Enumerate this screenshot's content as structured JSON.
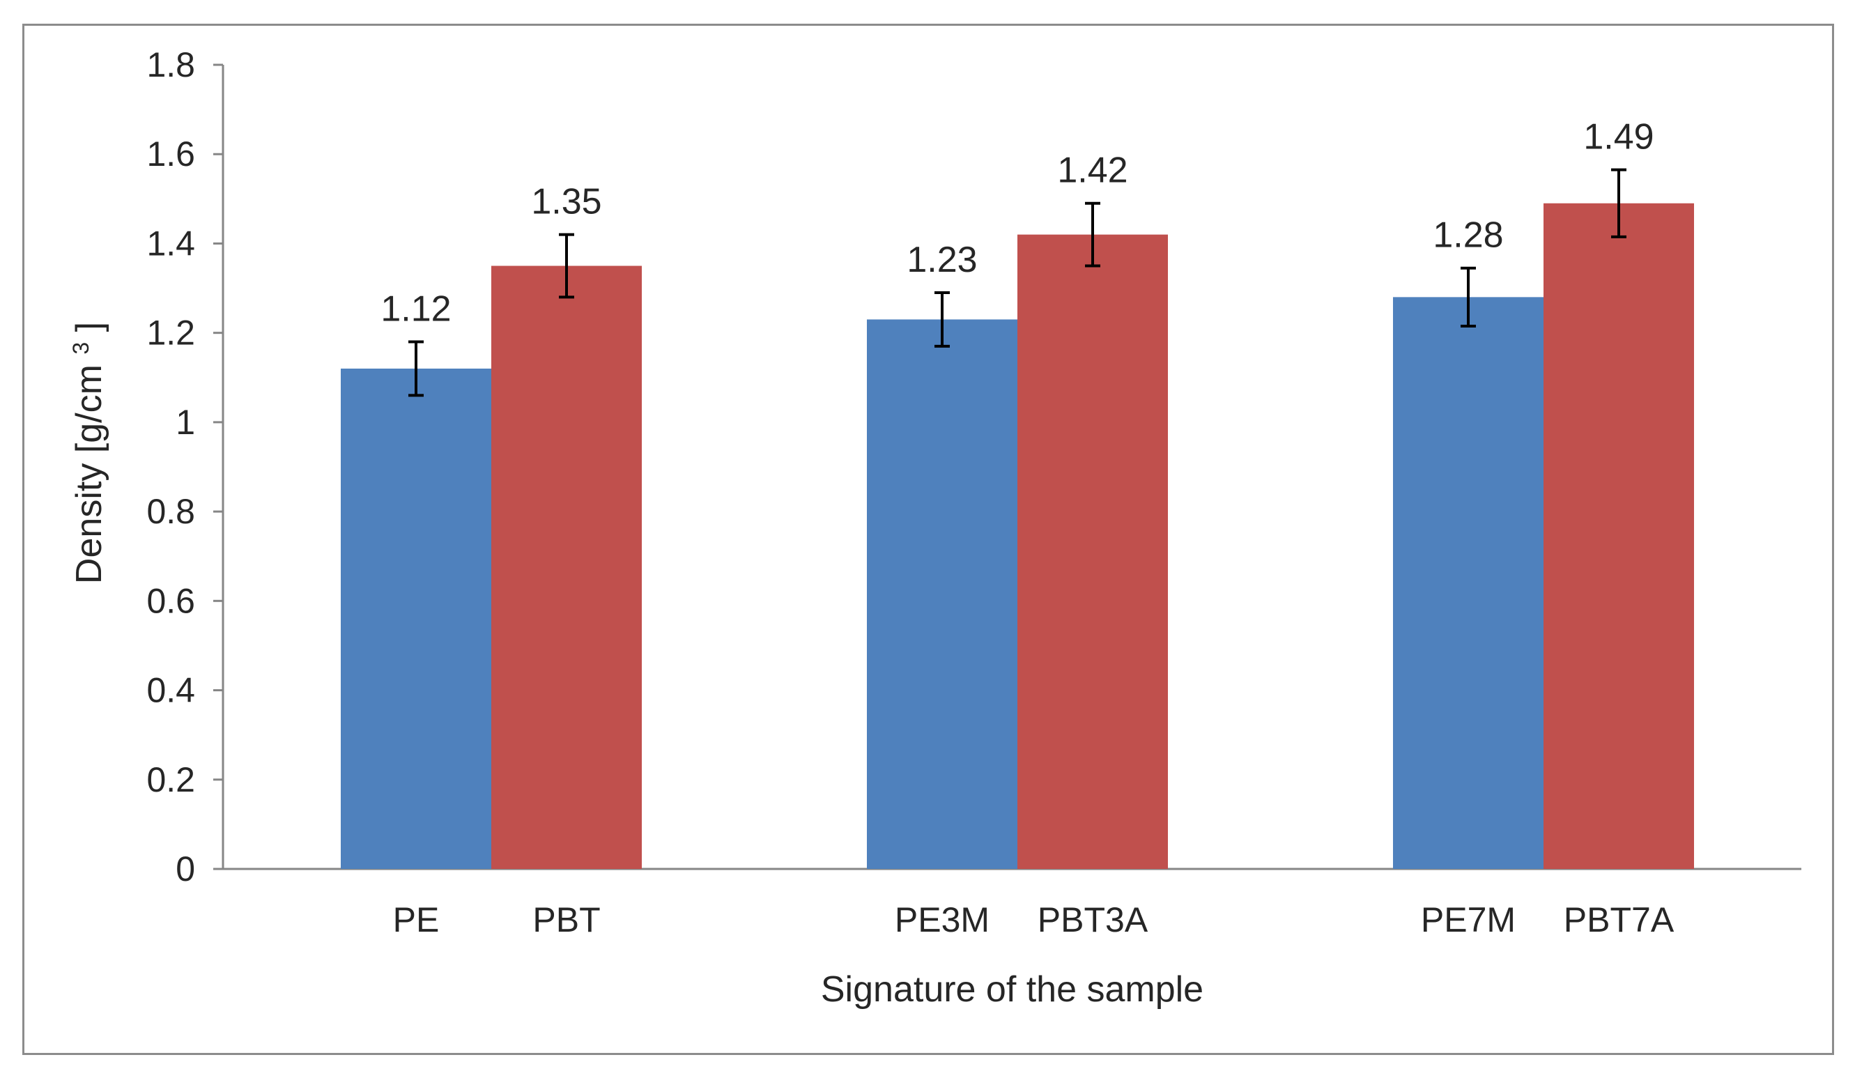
{
  "chart_data": {
    "type": "bar",
    "xlabel": "Signature of the sample",
    "ylabel_main": "Density",
    "ylabel_unit_prefix": "[g/cm",
    "ylabel_unit_sup": "3",
    "ylabel_unit_suffix": "]",
    "ylim": [
      0,
      1.8
    ],
    "yticks": [
      0,
      0.2,
      0.4,
      0.6,
      0.8,
      1,
      1.2,
      1.4,
      1.6,
      1.8
    ],
    "ytick_labels": [
      "0",
      "0.2",
      "0.4",
      "0.6",
      "0.8",
      "1",
      "1.2",
      "1.4",
      "1.6",
      "1.8"
    ],
    "grid": false,
    "legend": "none",
    "groups": [
      {
        "bars": [
          {
            "label": "PE",
            "value": 1.12,
            "value_label": "1.12",
            "error": 0.06,
            "color": "#4f81bd"
          },
          {
            "label": "PBT",
            "value": 1.35,
            "value_label": "1.35",
            "error": 0.07,
            "color": "#c0504d"
          }
        ]
      },
      {
        "bars": [
          {
            "label": "PE3M",
            "value": 1.23,
            "value_label": "1.23",
            "error": 0.06,
            "color": "#4f81bd"
          },
          {
            "label": "PBT3A",
            "value": 1.42,
            "value_label": "1.42",
            "error": 0.07,
            "color": "#c0504d"
          }
        ]
      },
      {
        "bars": [
          {
            "label": "PE7M",
            "value": 1.28,
            "value_label": "1.28",
            "error": 0.065,
            "color": "#4f81bd"
          },
          {
            "label": "PBT7A",
            "value": 1.49,
            "value_label": "1.49",
            "error": 0.075,
            "color": "#c0504d"
          }
        ]
      }
    ],
    "colors": {
      "series_blue": "#4f81bd",
      "series_red": "#c0504d",
      "axis": "#868686",
      "error_bar": "#000000"
    }
  }
}
